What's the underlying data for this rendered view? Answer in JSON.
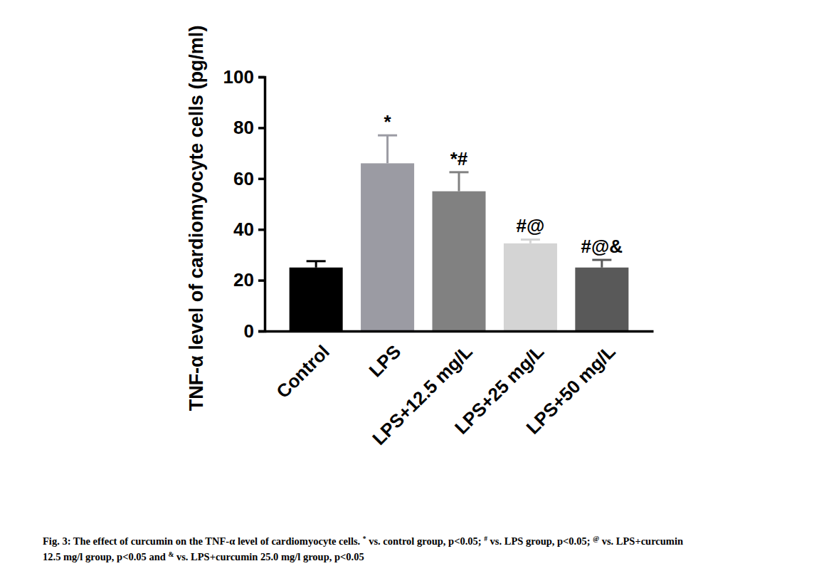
{
  "chart_data": {
    "type": "bar",
    "y_label": "TNF-α level of cardiomyocyte cells (pg/ml)",
    "categories": [
      "Control",
      "LPS",
      "LPS+12.5 mg/L",
      "LPS+25 mg/L",
      "LPS+50 mg/L"
    ],
    "values": [
      25,
      66,
      55,
      34.5,
      25
    ],
    "errors": [
      2.5,
      11,
      7.5,
      1.5,
      3
    ],
    "colors": [
      "#000000",
      "#9b9ba3",
      "#818181",
      "#d4d4d4",
      "#595959"
    ],
    "annotations": [
      null,
      "*",
      "*#",
      "#@",
      "#@&"
    ],
    "ylim": [
      0,
      100
    ],
    "yticks": [
      0,
      20,
      40,
      60,
      80,
      100
    ],
    "grid": false,
    "caption": [
      "Fig. 3: The effect of curcumin on the TNF-α level of cardiomyocyte cells. * vs. control group, p<0.05; # vs. LPS group, p<0.05; @ vs. LPS+curcumin",
      "12.5 mg/l group, p<0.05 and & vs. LPS+curcumin 25.0 mg/l group, p<0.05"
    ]
  }
}
